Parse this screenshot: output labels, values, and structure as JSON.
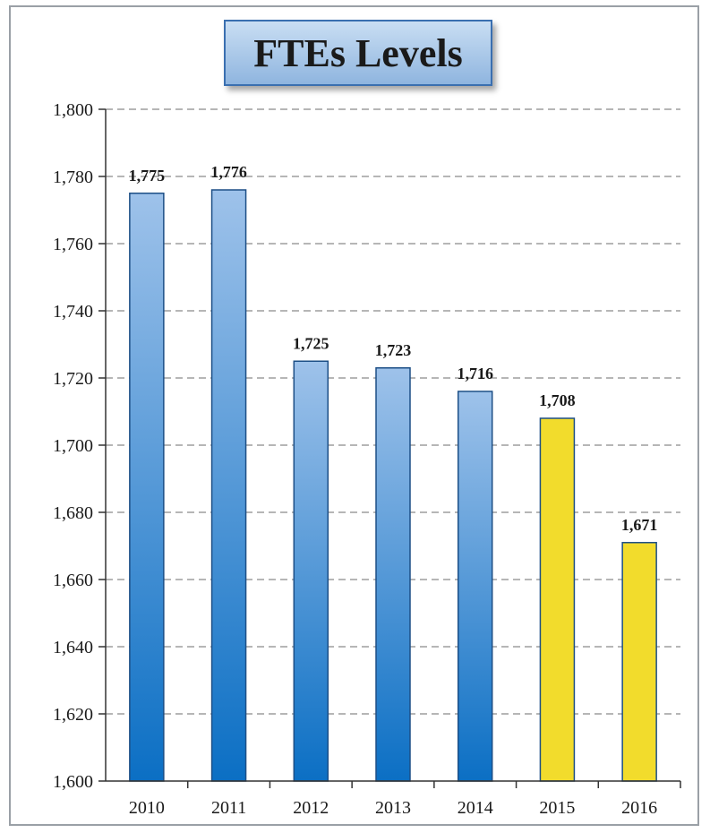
{
  "chart_data": {
    "type": "bar",
    "title": "FTEs Levels",
    "xlabel": "",
    "ylabel": "",
    "categories": [
      "2010",
      "2011",
      "2012",
      "2013",
      "2014",
      "2015",
      "2016"
    ],
    "values": [
      1775,
      1776,
      1725,
      1723,
      1716,
      1708,
      1671
    ],
    "data_labels": [
      "1,775",
      "1,776",
      "1,725",
      "1,723",
      "1,716",
      "1,708",
      "1,671"
    ],
    "ylim": [
      1600,
      1800
    ],
    "yticks": [
      1600,
      1620,
      1640,
      1660,
      1680,
      1700,
      1720,
      1740,
      1760,
      1780,
      1800
    ],
    "ytick_labels": [
      "1,600",
      "1,620",
      "1,640",
      "1,660",
      "1,680",
      "1,700",
      "1,720",
      "1,740",
      "1,760",
      "1,780",
      "1,800"
    ],
    "grid": "horizontal dashed",
    "legend": "none",
    "colors": {
      "actual_top": "#9ec2ea",
      "actual_bottom": "#0b6fc4",
      "projected_fill": "#f2dc2c",
      "bar_edge": "#1d4f86",
      "grid": "#6d6d6d"
    },
    "projected_categories": [
      "2015",
      "2016"
    ]
  }
}
